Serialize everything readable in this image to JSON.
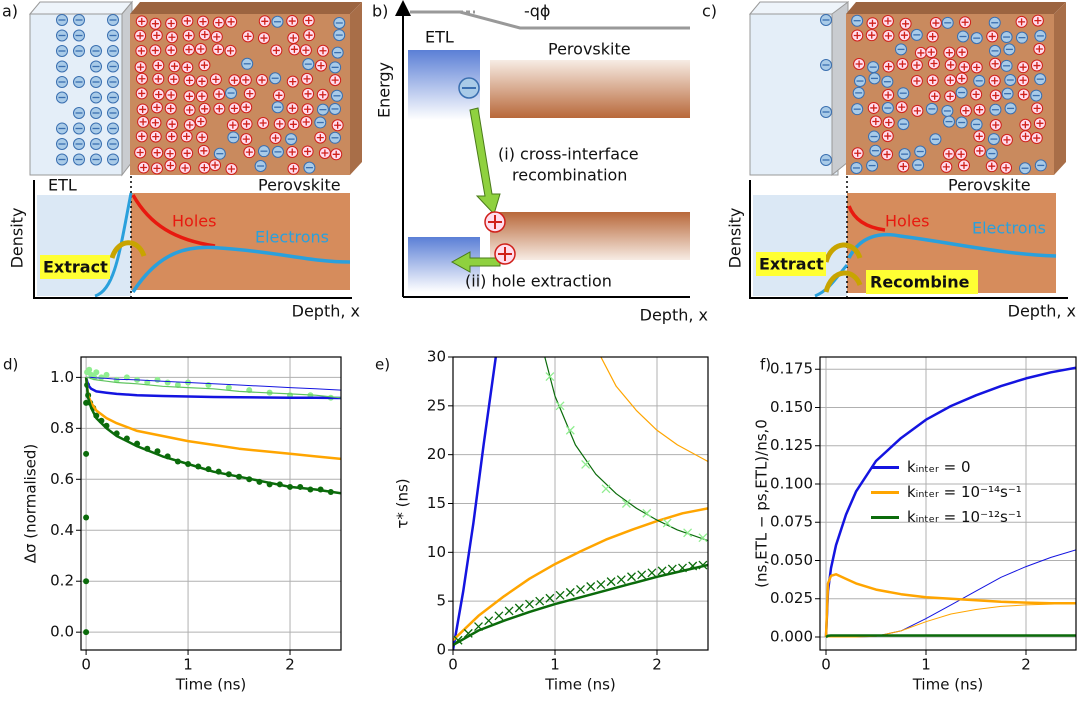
{
  "panels": {
    "a": {
      "label": "a)",
      "etl": "ETL",
      "perovskite": "Perovskite",
      "y_axis": "Density",
      "holes": "Holes",
      "electrons": "Electrons",
      "extract": "Extract",
      "x_axis": "Depth, x"
    },
    "b": {
      "label": "b)",
      "potential": "-qϕ",
      "etl": "ETL",
      "perovskite": "Perovskite",
      "y_axis": "Energy",
      "cross_interface": [
        "(i) cross-interface",
        "recombination"
      ],
      "hole_extraction": "(ii) hole extraction",
      "x_axis": "Depth, x"
    },
    "c": {
      "label": "c)",
      "perovskite": "Perovskite",
      "y_axis": "Density",
      "holes": "Holes",
      "electrons": "Electrons",
      "extract": "Extract",
      "recombine": "Recombine",
      "x_axis": "Depth, x"
    }
  },
  "chart_data": [
    {
      "type": "line",
      "panel_label": "d)",
      "x_label": "Time (ns)",
      "y_label": "Δσ (normalised)",
      "grid": true,
      "xlim": [
        -0.05,
        2.5
      ],
      "xticks": [
        0,
        1,
        2
      ],
      "ylim": [
        -0.07,
        1.08
      ],
      "yticks": [
        {
          "value": 0,
          "label": "0.0"
        },
        {
          "value": 0.2,
          "label": "0.2"
        },
        {
          "value": 0.4,
          "label": "0.4"
        },
        {
          "value": 0.6,
          "label": "0.6"
        },
        {
          "value": 0.8,
          "label": "0.8"
        },
        {
          "value": 1,
          "label": "1.0"
        }
      ],
      "x": [
        0,
        0.02,
        0.05,
        0.1,
        0.2,
        0.3,
        0.5,
        0.75,
        1,
        1.25,
        1.5,
        1.75,
        2,
        2.25,
        2.5
      ],
      "series": [
        {
          "kind": "scatter",
          "color": "#90ee90",
          "x": [
            0.01,
            0.03,
            0.05,
            0.08,
            0.1,
            0.15,
            0.2,
            0.3,
            0.4,
            0.5,
            0.6,
            0.7,
            0.8,
            0.9,
            1.0,
            1.2,
            1.4,
            1.6,
            1.8,
            2.0,
            2.2,
            2.4
          ],
          "values": [
            1.02,
            1.03,
            1.01,
            1.0,
            1.02,
            1.0,
            1.01,
            0.99,
            1.0,
            0.99,
            0.98,
            0.99,
            0.98,
            0.97,
            0.98,
            0.97,
            0.96,
            0.95,
            0.94,
            0.93,
            0.93,
            0.92
          ]
        },
        {
          "kind": "scatter",
          "color": "#0b6b0b",
          "x": [
            0,
            0,
            0,
            0,
            0,
            0.01,
            0.02,
            0.04,
            0.07,
            0.1,
            0.15,
            0.2,
            0.3,
            0.4,
            0.5,
            0.6,
            0.7,
            0.8,
            0.9,
            1.0,
            1.1,
            1.2,
            1.3,
            1.4,
            1.5,
            1.6,
            1.7,
            1.8,
            1.9,
            2.0,
            2.1,
            2.2,
            2.3,
            2.4
          ],
          "values": [
            0.0,
            0.2,
            0.45,
            0.7,
            0.9,
            0.97,
            0.93,
            0.9,
            0.88,
            0.85,
            0.83,
            0.81,
            0.78,
            0.76,
            0.74,
            0.72,
            0.71,
            0.69,
            0.67,
            0.66,
            0.65,
            0.64,
            0.63,
            0.62,
            0.61,
            0.6,
            0.59,
            0.58,
            0.58,
            0.57,
            0.57,
            0.56,
            0.56,
            0.55
          ]
        },
        {
          "kind": "line",
          "color": "#1414e0",
          "width": 2.5,
          "values": [
            1.0,
            0.97,
            0.955,
            0.945,
            0.94,
            0.935,
            0.93,
            0.927,
            0.925,
            0.923,
            0.922,
            0.921,
            0.92,
            0.92,
            0.919
          ]
        },
        {
          "kind": "line",
          "color": "#1414e0",
          "width": 1,
          "values": [
            1.0,
            1.0,
            1.0,
            0.998,
            0.996,
            0.993,
            0.99,
            0.985,
            0.98,
            0.975,
            0.97,
            0.965,
            0.96,
            0.955,
            0.95
          ]
        },
        {
          "kind": "line",
          "color": "#ffa500",
          "width": 2.5,
          "values": [
            1.0,
            0.93,
            0.9,
            0.87,
            0.84,
            0.82,
            0.79,
            0.77,
            0.75,
            0.735,
            0.72,
            0.71,
            0.7,
            0.69,
            0.68
          ]
        },
        {
          "kind": "line",
          "color": "#0b6b0b",
          "width": 2.5,
          "values": [
            1.0,
            0.92,
            0.88,
            0.84,
            0.8,
            0.77,
            0.73,
            0.69,
            0.66,
            0.63,
            0.61,
            0.59,
            0.57,
            0.56,
            0.545
          ]
        },
        {
          "kind": "line",
          "color": "#5fc45f",
          "width": 1.2,
          "values": [
            1.0,
            1.0,
            0.995,
            0.99,
            0.985,
            0.98,
            0.975,
            0.965,
            0.96,
            0.955,
            0.945,
            0.94,
            0.935,
            0.93,
            0.92
          ]
        }
      ]
    },
    {
      "type": "line",
      "panel_label": "e)",
      "x_label": "Time (ns)",
      "y_label": "τ* (ns)",
      "grid": true,
      "xlim": [
        0,
        2.5
      ],
      "xticks": [
        0,
        1,
        2
      ],
      "ylim": [
        0,
        30
      ],
      "yticks": [
        0,
        5,
        10,
        15,
        20,
        25,
        30
      ],
      "series": [
        {
          "kind": "line",
          "color": "#1414e0",
          "width": 2.5,
          "x": [
            0,
            0.1,
            0.2,
            0.3,
            0.42
          ],
          "values": [
            0,
            6,
            13,
            21,
            30
          ]
        },
        {
          "kind": "line",
          "color": "#ffa500",
          "width": 2.5,
          "x": [
            0,
            0.25,
            0.5,
            0.75,
            1,
            1.25,
            1.5,
            1.75,
            2,
            2.25,
            2.5
          ],
          "values": [
            1,
            3.5,
            5.5,
            7.3,
            8.8,
            10.1,
            11.3,
            12.3,
            13.2,
            14,
            14.5
          ]
        },
        {
          "kind": "line",
          "color": "#ffa500",
          "width": 1.2,
          "x": [
            1.45,
            1.6,
            1.8,
            2,
            2.2,
            2.5
          ],
          "values": [
            30,
            27,
            24.5,
            22.5,
            21,
            19.3
          ]
        },
        {
          "kind": "line",
          "color": "#0b6b0b",
          "width": 2.5,
          "x": [
            0,
            0.25,
            0.5,
            0.75,
            1,
            1.25,
            1.5,
            1.75,
            2,
            2.25,
            2.5
          ],
          "values": [
            0.5,
            2,
            3,
            3.9,
            4.7,
            5.4,
            6.1,
            6.8,
            7.5,
            8.1,
            8.7
          ]
        },
        {
          "kind": "line",
          "color": "#0b6b0b",
          "width": 1.2,
          "x": [
            0.9,
            1.0,
            1.2,
            1.4,
            1.6,
            1.8,
            2,
            2.2,
            2.5
          ],
          "values": [
            30,
            26,
            21,
            18,
            16,
            14.5,
            13.3,
            12.3,
            11.2
          ]
        },
        {
          "kind": "cross",
          "color": "#0b6b0b",
          "x": [
            0.05,
            0.15,
            0.25,
            0.35,
            0.45,
            0.55,
            0.65,
            0.75,
            0.85,
            0.95,
            1.05,
            1.15,
            1.25,
            1.35,
            1.45,
            1.55,
            1.65,
            1.75,
            1.85,
            1.95,
            2.05,
            2.15,
            2.25,
            2.35,
            2.45
          ],
          "values": [
            1,
            1.7,
            2.4,
            3,
            3.5,
            4,
            4.3,
            4.7,
            5,
            5.3,
            5.6,
            5.9,
            6.2,
            6.5,
            6.7,
            7,
            7.2,
            7.5,
            7.7,
            7.9,
            8.1,
            8.3,
            8.4,
            8.6,
            8.7
          ]
        },
        {
          "kind": "cross",
          "color": "#90ee90",
          "x": [
            0.95,
            1.05,
            1.15,
            1.3,
            1.5,
            1.7,
            1.9,
            2.1,
            2.3,
            2.45
          ],
          "values": [
            28,
            25,
            22.5,
            19,
            16.5,
            15,
            14,
            13,
            12,
            11.5
          ]
        }
      ]
    },
    {
      "type": "line",
      "panel_label": "f)",
      "x_label": "Time (ns)",
      "y_label": "(ns,ETL − ps,ETL)/ns,0",
      "grid": true,
      "legend": "center right",
      "xlim": [
        -0.06,
        2.5
      ],
      "xticks": [
        0,
        1,
        2
      ],
      "ylim": [
        -0.0085,
        0.183
      ],
      "yticks": [
        {
          "value": 0,
          "label": "0.000"
        },
        {
          "value": 0.025,
          "label": "0.025"
        },
        {
          "value": 0.05,
          "label": "0.050"
        },
        {
          "value": 0.075,
          "label": "0.075"
        },
        {
          "value": 0.1,
          "label": "0.100"
        },
        {
          "value": 0.125,
          "label": "0.125"
        },
        {
          "value": 0.15,
          "label": "0.150"
        },
        {
          "value": 0.175,
          "label": "0.175"
        }
      ],
      "x": [
        0,
        0.02,
        0.05,
        0.1,
        0.2,
        0.3,
        0.5,
        0.75,
        1,
        1.25,
        1.5,
        1.75,
        2,
        2.25,
        2.5
      ],
      "series": [
        {
          "kind": "line",
          "name": "kᵢₙₜₑᵣ = 0",
          "color": "#1414e0",
          "width": 2.5,
          "values": [
            0,
            0.03,
            0.045,
            0.06,
            0.08,
            0.095,
            0.115,
            0.13,
            0.142,
            0.151,
            0.158,
            0.164,
            0.169,
            0.173,
            0.176
          ]
        },
        {
          "kind": "line",
          "color": "#1414e0",
          "width": 1,
          "values": [
            0,
            0,
            0,
            0,
            0,
            0,
            0.0005,
            0.004,
            0.012,
            0.021,
            0.03,
            0.039,
            0.046,
            0.052,
            0.057
          ]
        },
        {
          "kind": "line",
          "name": "kᵢₙₜₑᵣ = 10⁻¹⁴s⁻¹",
          "color": "#ffa500",
          "width": 2.5,
          "values": [
            0,
            0.035,
            0.04,
            0.041,
            0.038,
            0.035,
            0.031,
            0.028,
            0.026,
            0.025,
            0.024,
            0.023,
            0.0225,
            0.022,
            0.022
          ]
        },
        {
          "kind": "line",
          "color": "#ffa500",
          "width": 1,
          "values": [
            0,
            0,
            0,
            0,
            0,
            0,
            0.0005,
            0.004,
            0.01,
            0.015,
            0.018,
            0.02,
            0.021,
            0.0215,
            0.022
          ]
        },
        {
          "kind": "line",
          "name": "kᵢₙₜₑᵣ = 10⁻¹²s⁻¹",
          "color": "#0b6b0b",
          "width": 2.5,
          "values": [
            0,
            0.0008,
            0.001,
            0.001,
            0.001,
            0.001,
            0.001,
            0.001,
            0.001,
            0.001,
            0.001,
            0.001,
            0.001,
            0.001,
            0.001
          ]
        }
      ]
    }
  ]
}
